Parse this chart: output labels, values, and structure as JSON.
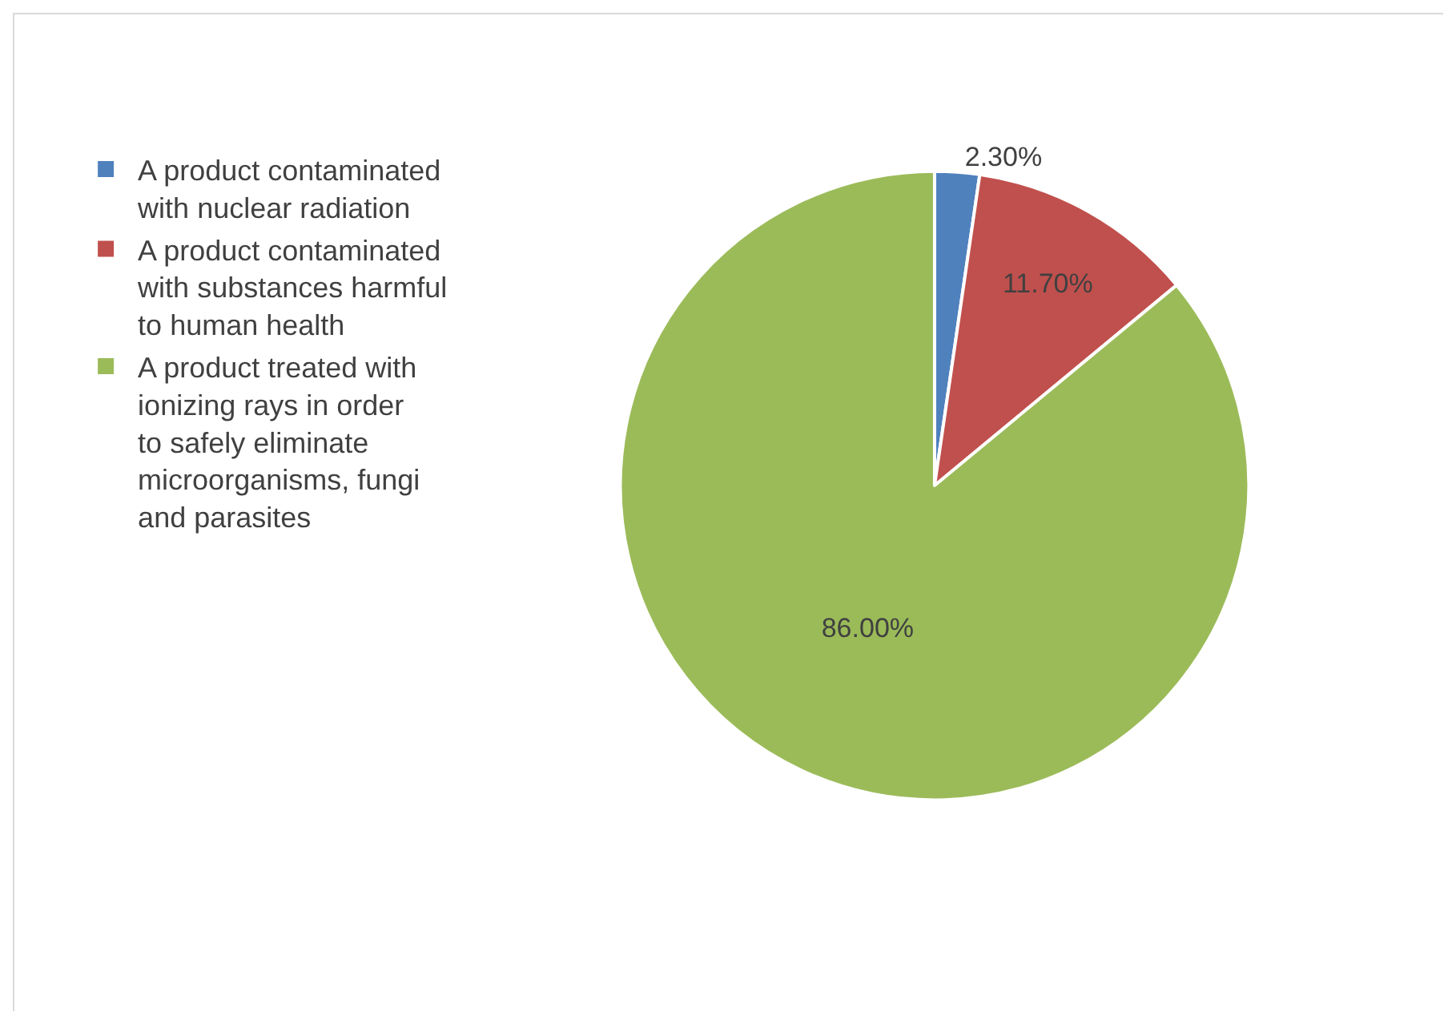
{
  "chart_data": {
    "type": "pie",
    "categories": [
      "A product contaminated with nuclear radiation",
      "A product contaminated with substances harmful to human health",
      "A product treated with ionizing rays in order to safely eliminate microorganisms, fungi and parasites"
    ],
    "values": [
      2.3,
      11.7,
      86
    ],
    "value_labels": [
      "2.30%",
      "11.70%",
      "86.00%"
    ],
    "colors": [
      "#4f81bd",
      "#c0504d",
      "#9bbb59"
    ],
    "legend": "left"
  }
}
